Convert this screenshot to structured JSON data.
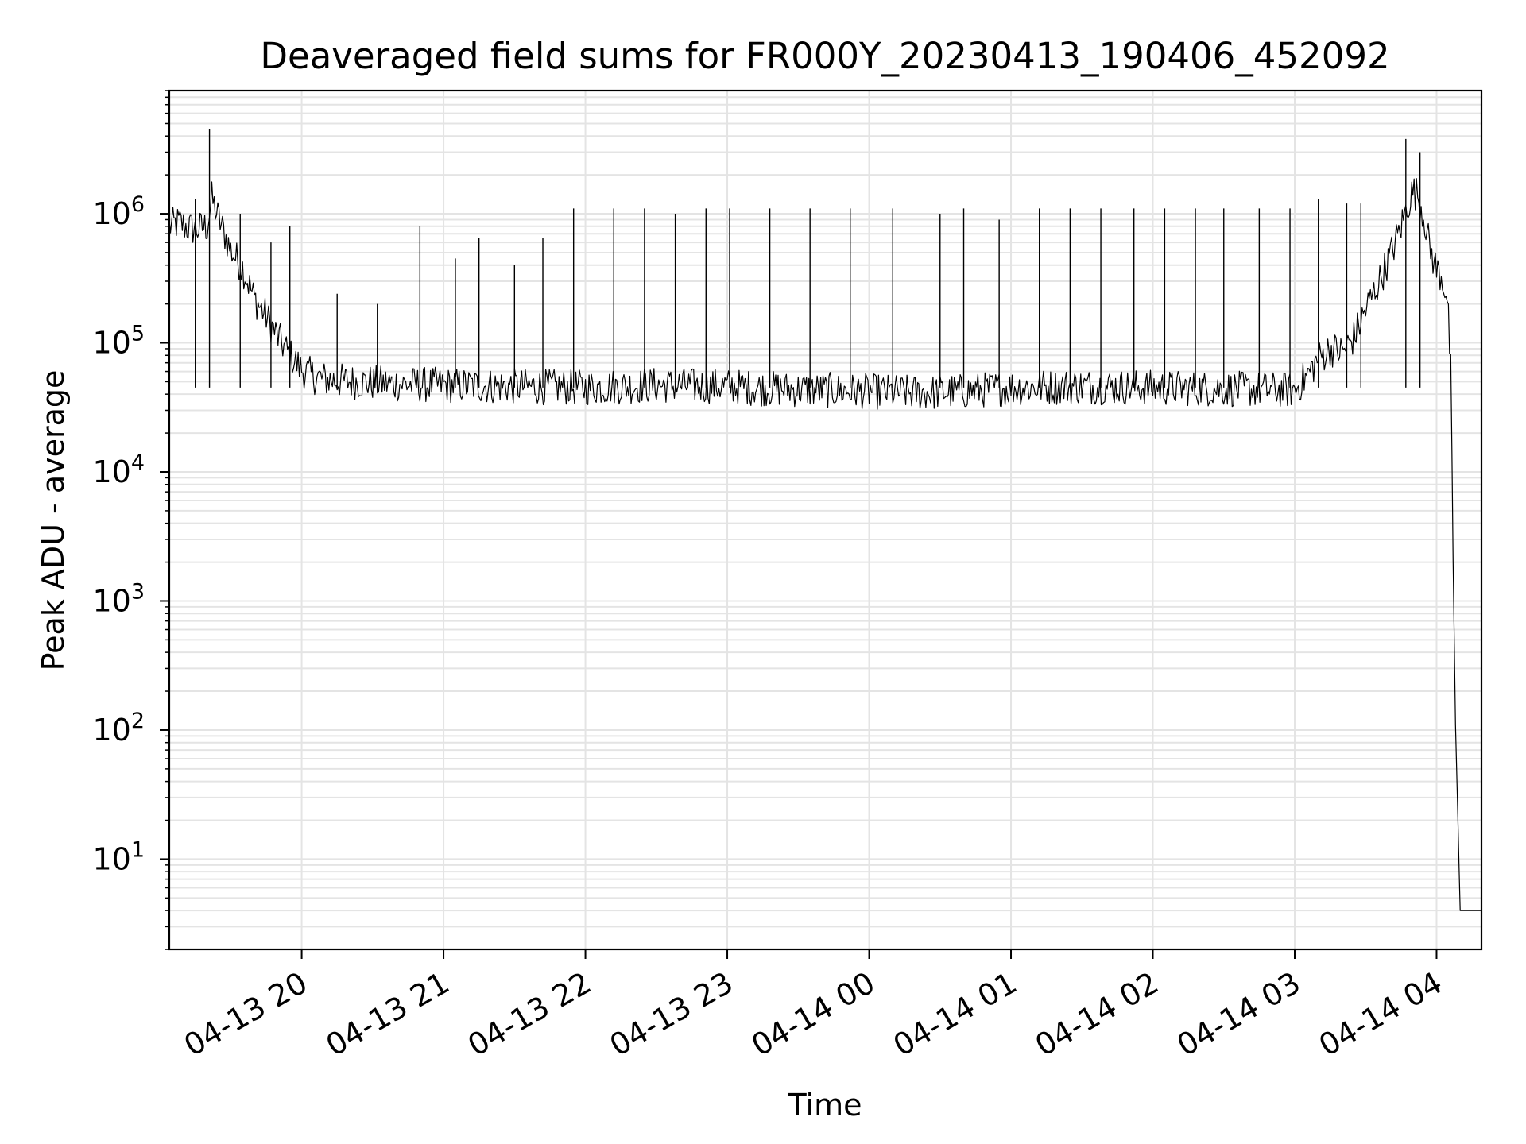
{
  "chart_data": {
    "type": "line",
    "title": "Deaveraged field sums for FR000Y_20230413_190406_452092",
    "xlabel": "Time",
    "ylabel": "Peak ADU - average",
    "yscale": "log",
    "ylim": [
      2,
      9000000
    ],
    "xlim": [
      "2023-04-13 19:04",
      "2023-04-14 04:19"
    ],
    "grid": true,
    "line_color": "#000000",
    "x_ticks": [
      {
        "value": "2023-04-13 20:00",
        "label": "04-13 20"
      },
      {
        "value": "2023-04-13 21:00",
        "label": "04-13 21"
      },
      {
        "value": "2023-04-13 22:00",
        "label": "04-13 22"
      },
      {
        "value": "2023-04-13 23:00",
        "label": "04-13 23"
      },
      {
        "value": "2023-04-14 00:00",
        "label": "04-14 00"
      },
      {
        "value": "2023-04-14 01:00",
        "label": "04-14 01"
      },
      {
        "value": "2023-04-14 02:00",
        "label": "04-14 02"
      },
      {
        "value": "2023-04-14 03:00",
        "label": "04-14 03"
      },
      {
        "value": "2023-04-14 04:00",
        "label": "04-14 04"
      }
    ],
    "y_ticks": [
      {
        "value": 10,
        "base": "10",
        "exp": "1"
      },
      {
        "value": 100,
        "base": "10",
        "exp": "2"
      },
      {
        "value": 1000,
        "base": "10",
        "exp": "3"
      },
      {
        "value": 10000,
        "base": "10",
        "exp": "4"
      },
      {
        "value": 100000,
        "base": "10",
        "exp": "5"
      },
      {
        "value": 1000000,
        "base": "10",
        "exp": "6"
      }
    ],
    "series": [
      {
        "x": [
          "2023-04-13 19:04",
          "2023-04-13 19:08",
          "2023-04-13 19:12",
          "2023-04-13 19:16",
          "2023-04-13 19:20",
          "2023-04-13 19:22",
          "2023-04-13 19:25",
          "2023-04-13 19:30",
          "2023-04-13 19:35",
          "2023-04-13 19:40",
          "2023-04-13 19:45",
          "2023-04-13 19:50",
          "2023-04-13 19:55",
          "2023-04-13 20:00",
          "2023-04-13 20:05",
          "2023-04-13 20:10",
          "2023-04-13 20:20",
          "2023-04-13 20:40",
          "2023-04-13 21:00",
          "2023-04-13 21:30",
          "2023-04-13 22:00",
          "2023-04-13 22:30",
          "2023-04-13 23:00",
          "2023-04-13 23:20",
          "2023-04-13 23:40",
          "2023-04-14 00:00",
          "2023-04-14 00:20",
          "2023-04-14 00:40",
          "2023-04-14 01:00",
          "2023-04-14 01:30",
          "2023-04-14 02:00",
          "2023-04-14 02:30",
          "2023-04-14 03:00",
          "2023-04-14 03:05",
          "2023-04-14 03:10",
          "2023-04-14 03:15",
          "2023-04-14 03:20",
          "2023-04-14 03:25",
          "2023-04-14 03:30",
          "2023-04-14 03:35",
          "2023-04-14 03:40",
          "2023-04-14 03:45",
          "2023-04-14 03:48",
          "2023-04-14 03:50",
          "2023-04-14 03:52",
          "2023-04-14 03:55",
          "2023-04-14 03:57",
          "2023-04-14 04:00",
          "2023-04-14 04:02",
          "2023-04-14 04:04",
          "2023-04-14 04:05",
          "2023-04-14 04:06",
          "2023-04-14 04:07",
          "2023-04-14 04:08",
          "2023-04-14 04:10",
          "2023-04-14 04:19"
        ],
        "y": [
          800000,
          850000,
          780000,
          760000,
          800000,
          1300000,
          900000,
          520000,
          380000,
          220000,
          160000,
          110000,
          80000,
          62000,
          55000,
          52000,
          50000,
          48000,
          47000,
          46000,
          45000,
          47000,
          46000,
          44000,
          43000,
          42000,
          41000,
          42000,
          45000,
          46000,
          45000,
          44000,
          43000,
          55000,
          75000,
          90000,
          85000,
          110000,
          180000,
          280000,
          450000,
          800000,
          1200000,
          1500000,
          1400000,
          900000,
          550000,
          370000,
          330000,
          250000,
          150000,
          60000,
          2000,
          110,
          4,
          4
        ]
      }
    ],
    "spikes": [
      {
        "x": "2023-04-13 19:21",
        "y": 4500000
      },
      {
        "x": "2023-04-13 19:15",
        "y": 1300000
      },
      {
        "x": "2023-04-13 19:34",
        "y": 1000000
      },
      {
        "x": "2023-04-13 19:47",
        "y": 600000
      },
      {
        "x": "2023-04-13 19:55",
        "y": 800000
      },
      {
        "x": "2023-04-13 20:15",
        "y": 240000
      },
      {
        "x": "2023-04-13 20:32",
        "y": 200000
      },
      {
        "x": "2023-04-13 20:50",
        "y": 800000
      },
      {
        "x": "2023-04-13 21:05",
        "y": 450000
      },
      {
        "x": "2023-04-13 21:15",
        "y": 650000
      },
      {
        "x": "2023-04-13 21:30",
        "y": 400000
      },
      {
        "x": "2023-04-13 21:42",
        "y": 650000
      },
      {
        "x": "2023-04-13 21:55",
        "y": 1100000
      },
      {
        "x": "2023-04-13 22:12",
        "y": 1100000
      },
      {
        "x": "2023-04-13 22:25",
        "y": 1100000
      },
      {
        "x": "2023-04-13 22:38",
        "y": 1000000
      },
      {
        "x": "2023-04-13 22:51",
        "y": 1100000
      },
      {
        "x": "2023-04-13 23:01",
        "y": 1100000
      },
      {
        "x": "2023-04-13 23:18",
        "y": 1100000
      },
      {
        "x": "2023-04-13 23:35",
        "y": 1100000
      },
      {
        "x": "2023-04-13 23:52",
        "y": 1100000
      },
      {
        "x": "2023-04-14 00:10",
        "y": 1100000
      },
      {
        "x": "2023-04-14 00:30",
        "y": 1000000
      },
      {
        "x": "2023-04-14 00:40",
        "y": 1100000
      },
      {
        "x": "2023-04-14 00:55",
        "y": 900000
      },
      {
        "x": "2023-04-14 01:12",
        "y": 1100000
      },
      {
        "x": "2023-04-14 01:25",
        "y": 1100000
      },
      {
        "x": "2023-04-14 01:38",
        "y": 1100000
      },
      {
        "x": "2023-04-14 01:52",
        "y": 1100000
      },
      {
        "x": "2023-04-14 02:05",
        "y": 1100000
      },
      {
        "x": "2023-04-14 02:18",
        "y": 1100000
      },
      {
        "x": "2023-04-14 02:30",
        "y": 1100000
      },
      {
        "x": "2023-04-14 02:45",
        "y": 1100000
      },
      {
        "x": "2023-04-14 02:58",
        "y": 1100000
      },
      {
        "x": "2023-04-14 03:10",
        "y": 1300000
      },
      {
        "x": "2023-04-14 03:22",
        "y": 1200000
      },
      {
        "x": "2023-04-14 03:28",
        "y": 1200000
      },
      {
        "x": "2023-04-14 03:47",
        "y": 3800000
      },
      {
        "x": "2023-04-14 03:53",
        "y": 3000000
      }
    ]
  }
}
